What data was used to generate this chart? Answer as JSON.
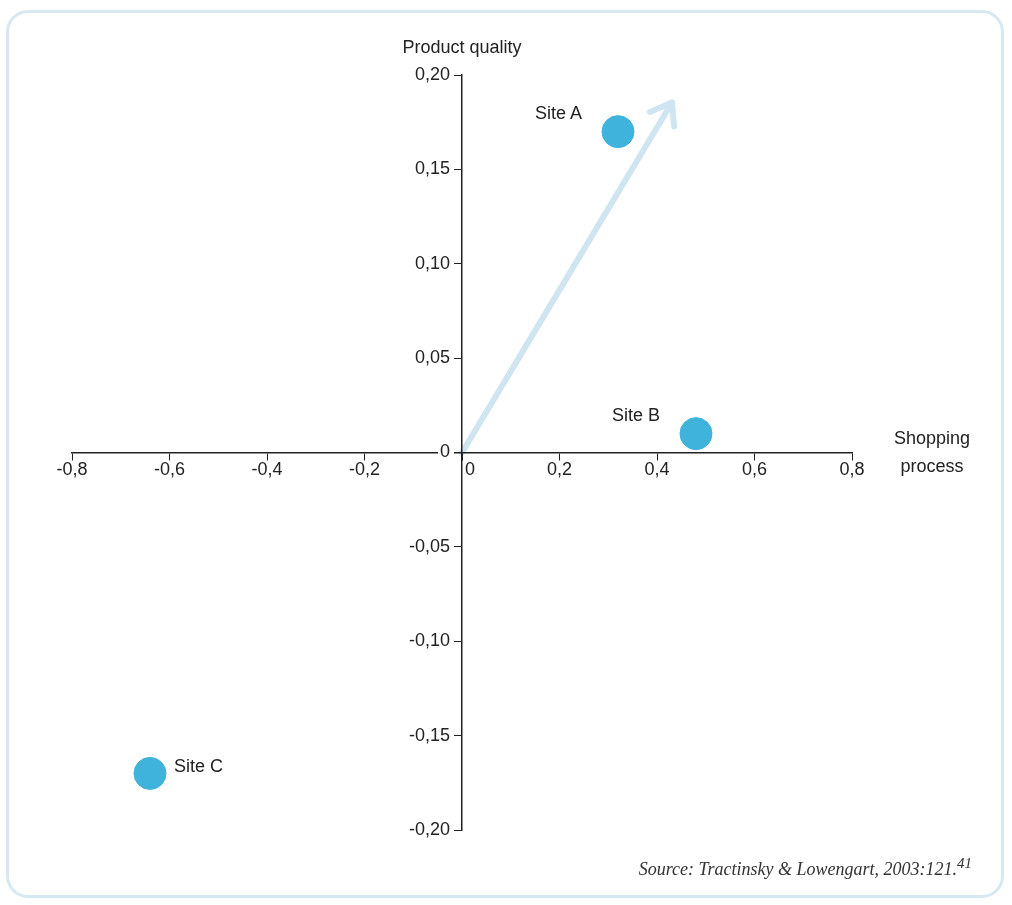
{
  "chart_data": {
    "type": "scatter",
    "xlabel": "Shopping process",
    "ylabel": "Product quality",
    "series": [
      {
        "name": "Site A",
        "color": "#3fb3dc",
        "x": [
          0.32
        ],
        "values": [
          0.17
        ]
      },
      {
        "name": "Site B",
        "color": "#3fb3dc",
        "x": [
          0.48
        ],
        "values": [
          0.01
        ]
      },
      {
        "name": "Site C",
        "color": "#3fb3dc",
        "x": [
          -0.64
        ],
        "values": [
          -0.17
        ]
      }
    ],
    "xlim": [
      -0.8,
      0.8
    ],
    "xticks": [
      {
        "value": -0.8,
        "label": "-0,8"
      },
      {
        "value": -0.6,
        "label": "-0,6"
      },
      {
        "value": -0.4,
        "label": "-0,4"
      },
      {
        "value": -0.2,
        "label": "-0,2"
      },
      0,
      {
        "value": 0.2,
        "label": "0,2"
      },
      {
        "value": 0.4,
        "label": "0,4"
      },
      {
        "value": 0.6,
        "label": "0,6"
      },
      {
        "value": 0.8,
        "label": "0,8"
      }
    ],
    "ylim": [
      -0.2,
      0.2
    ],
    "yticks": [
      {
        "value": -0.2,
        "label": "-0,20"
      },
      {
        "value": -0.15,
        "label": "-0,15"
      },
      {
        "value": -0.1,
        "label": "-0,10"
      },
      {
        "value": -0.05,
        "label": "-0,05"
      },
      0,
      {
        "value": 0.05,
        "label": "0,05"
      },
      {
        "value": 0.1,
        "label": "0,10"
      },
      {
        "value": 0.15,
        "label": "0,15"
      },
      {
        "value": 0.2,
        "label": "0,20"
      }
    ],
    "grid": false,
    "legend": false,
    "marker": "circle",
    "annotations": [
      "Source: Tractinsky & Lowengart, 2003:121.$^{41}$"
    ]
  }
}
